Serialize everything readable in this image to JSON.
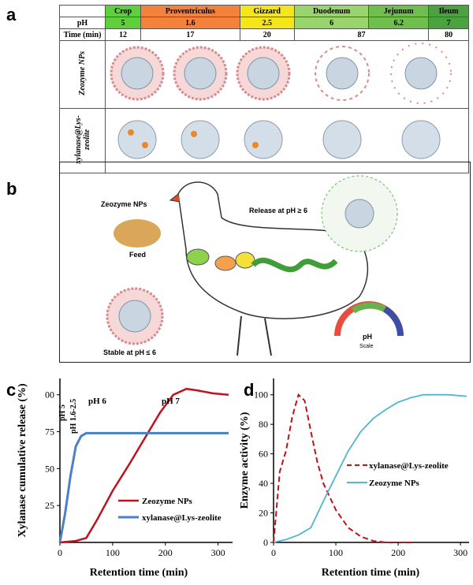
{
  "panels": {
    "a": "a",
    "b": "b",
    "c": "c",
    "d": "d"
  },
  "table": {
    "segments": [
      {
        "name": "Crop",
        "ph": "5",
        "time": "12",
        "color": "#5fcf3c"
      },
      {
        "name": "Proventriculus",
        "ph": "1.6",
        "time": "17",
        "color": "#f4823a"
      },
      {
        "name": "Gizzard",
        "ph": "2.5",
        "time": "20",
        "color": "#f5e61c"
      },
      {
        "name": "Duodenum",
        "ph": "6",
        "time": "87",
        "color": "#9ad46c"
      },
      {
        "name": "Jejunum",
        "ph": "6.2",
        "time": "80",
        "color": "#6fbe4e"
      },
      {
        "name": "Ileum",
        "ph": "7",
        "time": "80",
        "color": "#4aa33f"
      }
    ],
    "ph_label": "pH",
    "time_label": "Time (min)",
    "row1_label": "Zeozyme NPs",
    "row2_label": "xylanase@Lys-zeolite"
  },
  "schematic": {
    "zeozyme": "Zeozyme NPs",
    "feed": "Feed",
    "release": "Release at pH ≥ 6",
    "stable": "Stable at pH ≤ 6",
    "ph_scale_label": "pH",
    "ph_scale_sub": "Scale"
  },
  "chart_c": {
    "ylabel": "Xylanase cumulative release (%)",
    "xlabel": "Retention time (min)",
    "yticks": [
      "25",
      "50",
      "75",
      "00"
    ],
    "xticks": [
      "0",
      "100",
      "200",
      "300"
    ],
    "ph_regions": [
      "pH 5",
      "pH 1.6-2.5",
      "pH 6",
      "pH 7"
    ],
    "legend": [
      "Zeozyme NPs",
      "xylanase@Lys-zeolite"
    ],
    "colors": [
      "#c0121b",
      "#4a7fc9"
    ]
  },
  "chart_data": [
    {
      "type": "line",
      "xlabel": "Retention time (min)",
      "ylabel": "Xylanase cumulative release (%)",
      "xlim": [
        0,
        320
      ],
      "ylim": [
        0,
        110
      ],
      "series": [
        {
          "name": "Zeozyme NPs",
          "x": [
            0,
            30,
            50,
            70,
            100,
            130,
            160,
            190,
            215,
            240,
            260,
            290,
            320
          ],
          "y": [
            0,
            1,
            3,
            15,
            35,
            52,
            70,
            88,
            100,
            104,
            103,
            101,
            100
          ]
        },
        {
          "name": "xylanase@Lys-zeolite",
          "x": [
            0,
            10,
            20,
            30,
            40,
            50,
            60,
            100,
            200,
            320
          ],
          "y": [
            0,
            20,
            45,
            65,
            72,
            74,
            74,
            74,
            74,
            74
          ]
        }
      ]
    },
    {
      "type": "line",
      "xlabel": "Retention time (min)",
      "ylabel": "Enzyme activity (%)",
      "xlim": [
        0,
        310
      ],
      "ylim": [
        0,
        110
      ],
      "series": [
        {
          "name": "xylanase@Lys-zeolite",
          "x": [
            0,
            10,
            20,
            30,
            40,
            50,
            60,
            70,
            80,
            100,
            120,
            140,
            160,
            180,
            200,
            220
          ],
          "y": [
            0,
            48,
            62,
            85,
            100,
            96,
            75,
            55,
            40,
            22,
            10,
            4,
            1,
            0,
            0,
            0
          ]
        },
        {
          "name": "Zeozyme NPs",
          "x": [
            0,
            20,
            40,
            60,
            80,
            100,
            120,
            140,
            160,
            180,
            200,
            220,
            240,
            260,
            280,
            310
          ],
          "y": [
            0,
            2,
            5,
            10,
            28,
            45,
            62,
            75,
            84,
            90,
            95,
            98,
            100,
            100,
            100,
            99
          ]
        }
      ]
    }
  ],
  "chart_d": {
    "ylabel": "Enzyme activity (%)",
    "xlabel": "Retention time (min)",
    "yticks": [
      "0",
      "20",
      "40",
      "60",
      "80",
      "100"
    ],
    "xticks": [
      "0",
      "100",
      "200",
      "300"
    ],
    "legend": [
      "xylanase@Lys-zeolite",
      "Zeozyme NPs"
    ],
    "colors": [
      "#c0121b",
      "#4fb6cf"
    ]
  }
}
